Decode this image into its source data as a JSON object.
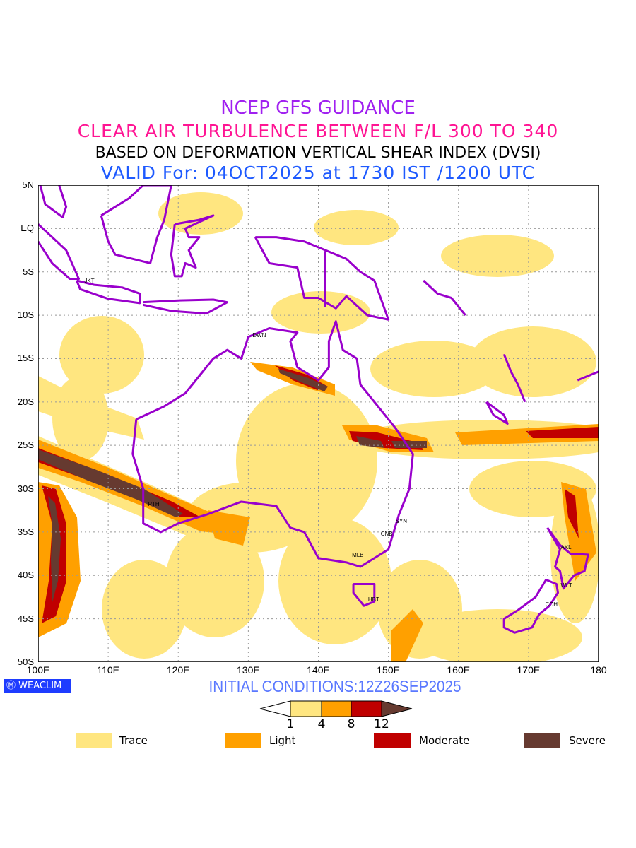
{
  "titles": {
    "line1": "NCEP GFS GUIDANCE",
    "line2": "CLEAR AIR TURBULENCE BETWEEN F/L 300 TO 340",
    "line3": "BASED ON DEFORMATION VERTICAL SHEAR INDEX (DVSI)",
    "line4": "VALID For: 04OCT2025 at 1730 IST /1200 UTC"
  },
  "axes": {
    "lat_labels": [
      "5N",
      "EQ",
      "5S",
      "10S",
      "15S",
      "20S",
      "25S",
      "30S",
      "35S",
      "40S",
      "45S",
      "50S"
    ],
    "lon_labels": [
      "100E",
      "110E",
      "120E",
      "130E",
      "140E",
      "150E",
      "160E",
      "170E",
      "180"
    ]
  },
  "stations": [
    {
      "code": "JKT",
      "lon": 106.8,
      "lat": -6.2
    },
    {
      "code": "DWN",
      "lon": 130.8,
      "lat": -12.4
    },
    {
      "code": "PTH",
      "lon": 115.9,
      "lat": -31.9
    },
    {
      "code": "SYN",
      "lon": 151.2,
      "lat": -33.9
    },
    {
      "code": "CNB",
      "lon": 149.1,
      "lat": -35.3
    },
    {
      "code": "MLB",
      "lon": 145,
      "lat": -37.8
    },
    {
      "code": "HBT",
      "lon": 147.3,
      "lat": -42.9
    },
    {
      "code": "AKL",
      "lon": 174.8,
      "lat": -36.9
    },
    {
      "code": "WLT",
      "lon": 174.8,
      "lat": -41.3
    },
    {
      "code": "CCH",
      "lon": 172.6,
      "lat": -43.5
    }
  ],
  "branding": "WEACLIM",
  "initial_conditions": "INITIAL CONDITIONS:12Z26SEP2025",
  "colorbar": {
    "ticks": [
      "1",
      "4",
      "8",
      "12"
    ],
    "colors": [
      "#ffe680",
      "#ffa000",
      "#c00000",
      "#663a30"
    ]
  },
  "legend": [
    {
      "label": "Trace",
      "color": "#ffe680"
    },
    {
      "label": "Light",
      "color": "#ffa000"
    },
    {
      "label": "Moderate",
      "color": "#c00000"
    },
    {
      "label": "Severe",
      "color": "#663a30"
    }
  ],
  "colors": {
    "coast": "#9900cc",
    "title1": "#a020f0",
    "title2": "#ff1493",
    "title4": "#1e5aff"
  }
}
